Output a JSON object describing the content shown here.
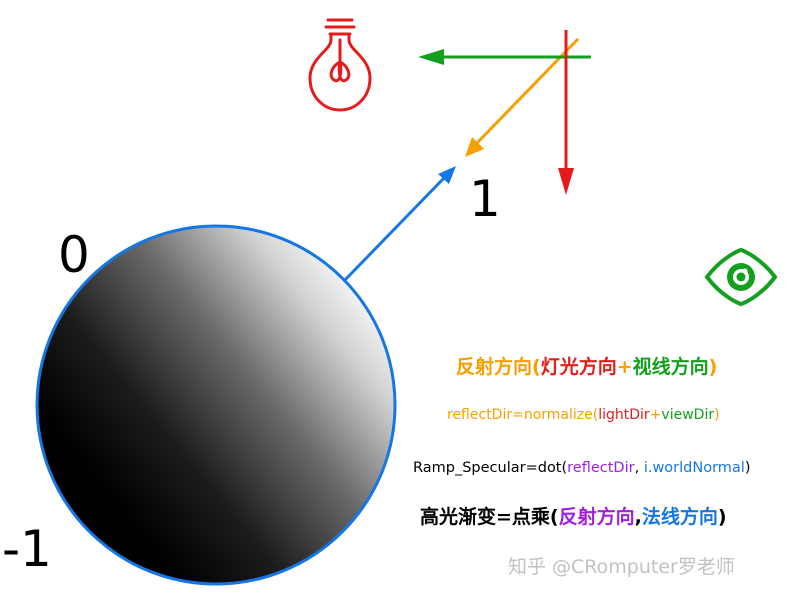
{
  "labels": {
    "one": "1",
    "zero": "0",
    "minus_one": "-1"
  },
  "formula_cn": {
    "reflect": "反射方向(",
    "light": "灯光方向",
    "plus": "+",
    "view": "视线方向",
    "close": ")"
  },
  "formula_code": {
    "reflect": "reflectDir=normalize(",
    "light": "lightDir",
    "plus": "+",
    "view": "viewDir",
    "close": ")"
  },
  "formula_ramp": {
    "prefix": "Ramp_Specular=dot(",
    "reflect": "reflectDir",
    "comma": ", ",
    "normal": "i.worldNormal",
    "close": ")"
  },
  "formula_cn2": {
    "prefix": "高光渐变=点乘(",
    "reflect": "反射方向",
    "comma": ",",
    "normal": "法线方向",
    "close": ")"
  },
  "watermark": "知乎 @CRomputer罗老师",
  "colors": {
    "orange": "#f5a000",
    "red": "#e51c1c",
    "green": "#14a01e",
    "blue": "#1577e6",
    "purple": "#a020e0",
    "black": "#000000"
  },
  "icons": [
    "lightbulb-icon",
    "eye-icon"
  ]
}
